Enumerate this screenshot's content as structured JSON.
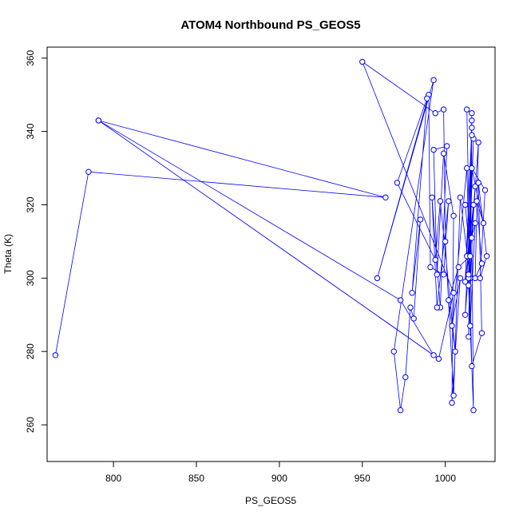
{
  "chart_data": {
    "type": "line",
    "title": "ATOM4 Northbound PS_GEOS5",
    "xlabel": "PS_GEOS5",
    "ylabel": "Theta (K)",
    "xlim": [
      760,
      1030
    ],
    "ylim": [
      250,
      363
    ],
    "xticks": [
      800,
      850,
      900,
      950,
      1000
    ],
    "yticks": [
      260,
      280,
      300,
      320,
      340,
      360
    ],
    "grid": false,
    "legend": "none",
    "series": [
      {
        "color": "#0000ff",
        "marker": "open-circle",
        "points": [
          [
            765,
            279
          ],
          [
            785,
            329
          ],
          [
            964,
            322
          ],
          [
            791,
            343
          ],
          [
            993,
            279
          ],
          [
            973,
            294
          ],
          [
            791,
            343
          ],
          [
            996,
            278
          ],
          [
            1005,
            296
          ],
          [
            950,
            359
          ],
          [
            994,
            345
          ],
          [
            999,
            346
          ],
          [
            1000,
            310
          ],
          [
            1005,
            268
          ],
          [
            1009,
            322
          ],
          [
            1015,
            300
          ],
          [
            1013,
            346
          ],
          [
            1016,
            345
          ],
          [
            1014,
            300
          ],
          [
            1017,
            338
          ],
          [
            1012,
            290
          ],
          [
            1018,
            325
          ],
          [
            1014,
            301
          ],
          [
            1016,
            341
          ],
          [
            1012,
            299
          ],
          [
            1017,
            320
          ],
          [
            1014,
            284
          ],
          [
            1016,
            339
          ],
          [
            1013,
            306
          ],
          [
            1018,
            315
          ],
          [
            1015,
            287
          ],
          [
            1016,
            343
          ],
          [
            1014,
            298
          ],
          [
            1017,
            264
          ],
          [
            1016,
            311
          ],
          [
            1020,
            337
          ],
          [
            1018,
            300
          ],
          [
            1022,
            304
          ],
          [
            1019,
            321
          ],
          [
            1023,
            315
          ],
          [
            1016,
            330
          ],
          [
            1024,
            324
          ],
          [
            1021,
            300
          ],
          [
            1025,
            306
          ],
          [
            1020,
            326
          ],
          [
            1022,
            285
          ],
          [
            1016,
            276
          ],
          [
            1013,
            330
          ],
          [
            1004,
            287
          ],
          [
            1009,
            300
          ],
          [
            1004,
            266
          ],
          [
            1005,
            317
          ],
          [
            999,
            334
          ],
          [
            995,
            301
          ],
          [
            993,
            335
          ],
          [
            1001,
            336
          ],
          [
            997,
            292
          ],
          [
            992,
            322
          ],
          [
            995,
            292
          ],
          [
            1002,
            321
          ],
          [
            999,
            301
          ],
          [
            991,
            303
          ],
          [
            990,
            350
          ],
          [
            959,
            300
          ],
          [
            993,
            354
          ],
          [
            969,
            280
          ],
          [
            973,
            264
          ],
          [
            976,
            273
          ],
          [
            979,
            292
          ],
          [
            981,
            289
          ],
          [
            985,
            316
          ],
          [
            980,
            296
          ],
          [
            989,
            349
          ],
          [
            971,
            326
          ],
          [
            994,
            305
          ],
          [
            997,
            321
          ],
          [
            1006,
            280
          ],
          [
            1002,
            294
          ],
          [
            1008,
            303
          ],
          [
            1015,
            306
          ],
          [
            1012,
            320
          ]
        ]
      }
    ]
  }
}
